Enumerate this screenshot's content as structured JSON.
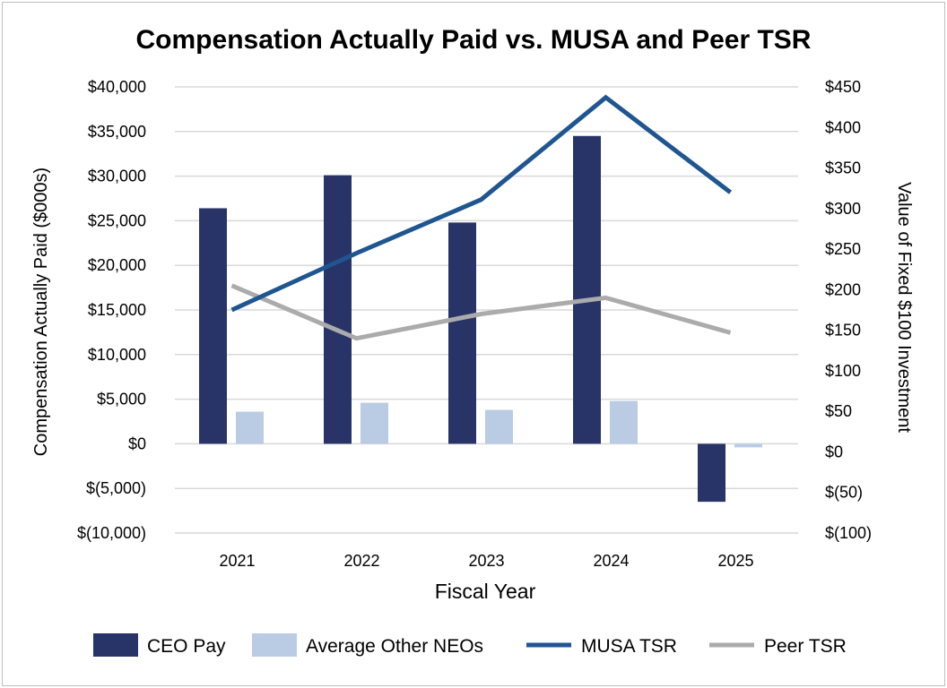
{
  "chart_data": {
    "type": "bar",
    "title": "Compensation Actually Paid vs. MUSA and Peer TSR",
    "xlabel": "Fiscal Year",
    "ylabel": "Compensation Actually Paid ($000s)",
    "y2label": "Value of Fixed $100 Investment",
    "categories": [
      "2021",
      "2022",
      "2023",
      "2024",
      "2025"
    ],
    "ylim": [
      -10000,
      40000
    ],
    "y2lim": [
      -100,
      450
    ],
    "yticks": [
      40000,
      35000,
      30000,
      25000,
      20000,
      15000,
      10000,
      5000,
      0,
      -5000,
      -10000
    ],
    "ytick_labels": [
      "$40,000",
      "$35,000",
      "$30,000",
      "$25,000",
      "$20,000",
      "$15,000",
      "$10,000",
      "$5,000",
      "$0",
      "$(5,000)",
      "$(10,000)"
    ],
    "y2ticks": [
      450,
      400,
      350,
      300,
      250,
      200,
      150,
      100,
      50,
      0,
      -50,
      -100
    ],
    "y2tick_labels": [
      "$450",
      "$400",
      "$350",
      "$300",
      "$250",
      "$200",
      "$150",
      "$100",
      "$50",
      "$0",
      "$(50)",
      "$(100)"
    ],
    "grid": true,
    "legend_position": "bottom",
    "bar_series": [
      {
        "name": "CEO Pay",
        "color": "#283467",
        "values": [
          26400,
          30100,
          24800,
          34500,
          -6500
        ]
      },
      {
        "name": "Average Other NEOs",
        "color": "#b9cce4",
        "values": [
          3600,
          4600,
          3800,
          4800,
          -400
        ]
      }
    ],
    "line_series": [
      {
        "name": "MUSA TSR",
        "color": "#1f5591",
        "axis": "right",
        "values": [
          175,
          245,
          311,
          437,
          320
        ]
      },
      {
        "name": "Peer TSR",
        "color": "#ababab",
        "axis": "right",
        "values": [
          205,
          140,
          170,
          190,
          147
        ]
      }
    ],
    "legend": [
      "CEO Pay",
      "Average Other NEOs",
      "MUSA TSR",
      "Peer TSR"
    ]
  }
}
